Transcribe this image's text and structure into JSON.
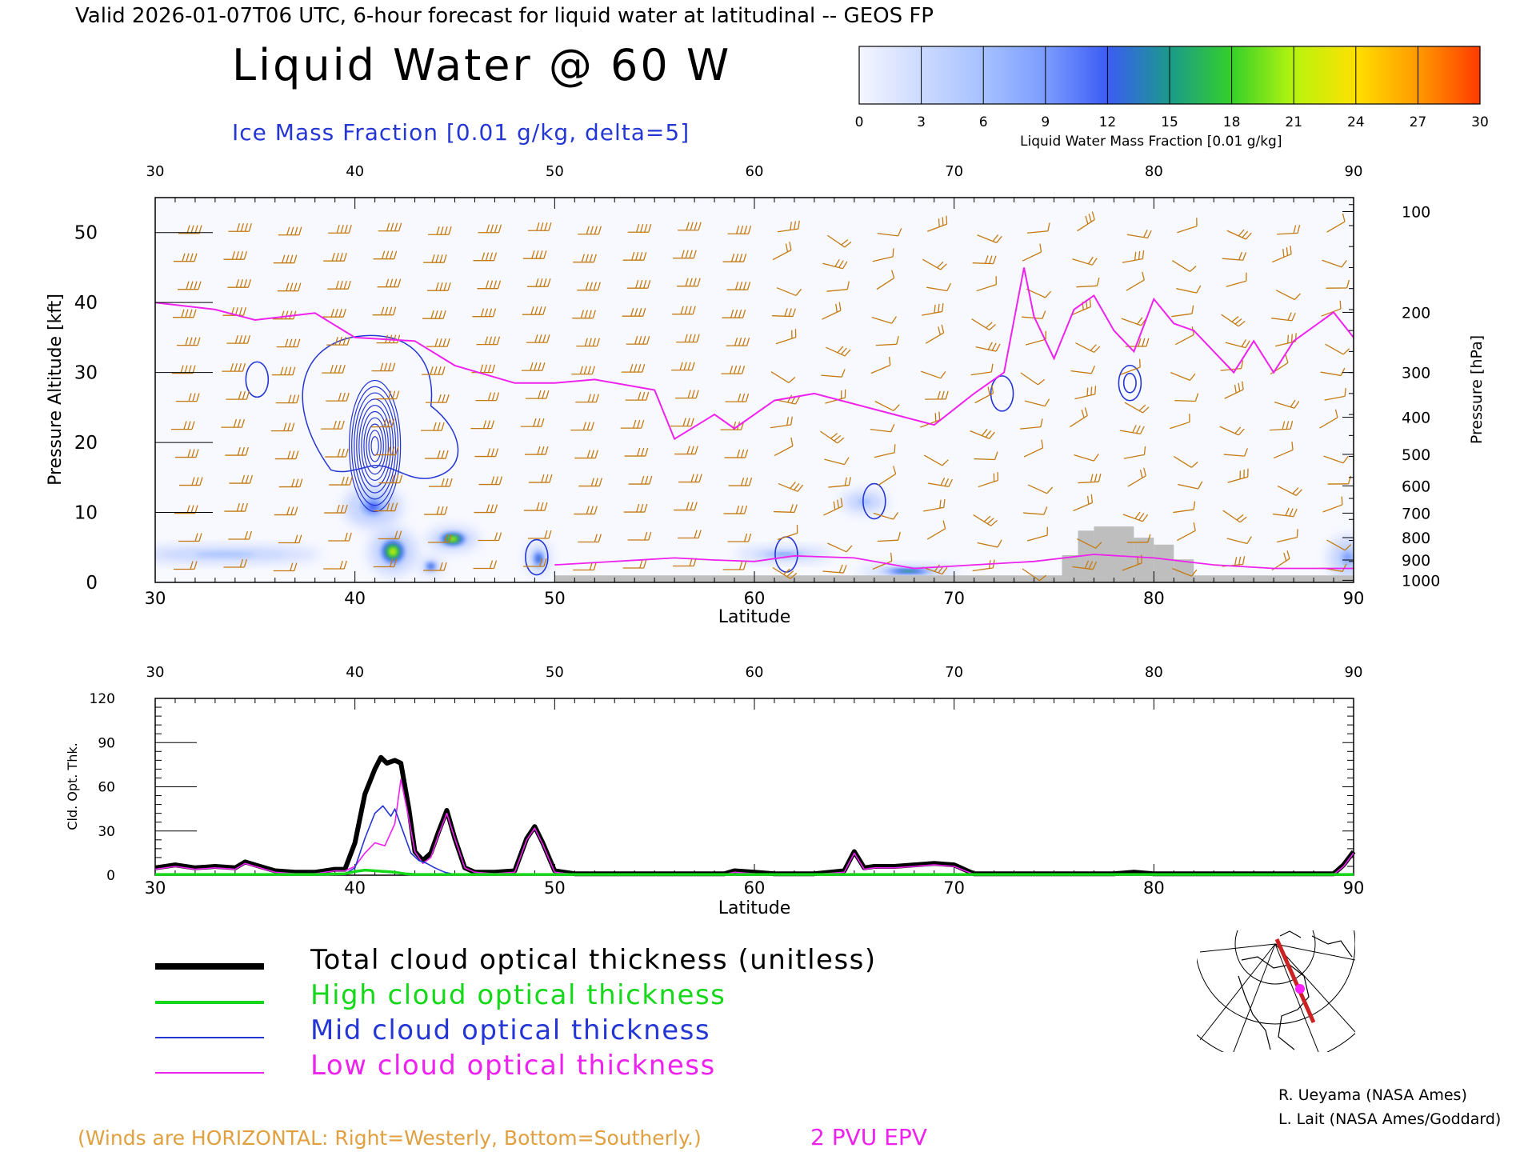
{
  "header": {
    "valid_line": "Valid 2026-01-07T06 UTC, 6-hour forecast for liquid water at latitudinal -- GEOS FP",
    "title": "Liquid Water @ 60 W",
    "ice_label": "Ice Mass Fraction [0.01 g/kg, delta=5]"
  },
  "colorbar": {
    "ticks": [
      "0",
      "3",
      "6",
      "9",
      "12",
      "15",
      "18",
      "21",
      "24",
      "27",
      "30"
    ],
    "label": "Liquid Water Mass Fraction [0.01 g/kg]",
    "colors": [
      "#f4f6ff",
      "#ccdaff",
      "#a6c1ff",
      "#7b9cff",
      "#3c5cf5",
      "#1a9a8a",
      "#35d02a",
      "#b6f40e",
      "#ffe000",
      "#ff9a00",
      "#ff3a00"
    ]
  },
  "colors": {
    "axis": "#000000",
    "wind_barb": "#c47a10",
    "ice_contour": "#2436d4",
    "epv_2pvu": "#ee22ee",
    "terrain": "#bebebe",
    "total_cot": "#000000",
    "high_cot": "#16d81a",
    "mid_cot": "#2436d4",
    "low_cot": "#ee22ee"
  },
  "legend": {
    "total": "Total cloud optical thickness (unitless)",
    "high": "High cloud optical thickness",
    "mid": "Mid cloud optical thickness",
    "low": "Low cloud optical thickness"
  },
  "footer": {
    "winds_note": "(Winds are HORIZONTAL: Right=Westerly, Bottom=Southerly.)",
    "pvu_label": "2 PVU EPV",
    "credit1": "R. Ueyama (NASA Ames)",
    "credit2": "L. Lait (NASA Ames/Goddard)"
  },
  "chart_data": [
    {
      "type": "heatmap",
      "title": "Liquid Water @ 60 W",
      "xlabel": "Latitude",
      "ylabel": "Pressure Altitude [kft]",
      "ylabel_right": "Pressure [hPa]",
      "xlim": [
        30,
        90
      ],
      "ylim": [
        0,
        55
      ],
      "x_ticks": [
        30,
        40,
        50,
        60,
        70,
        80,
        90
      ],
      "y_ticks": [
        0,
        10,
        20,
        30,
        40,
        50
      ],
      "pressure_ticks": [
        {
          "label": "100",
          "kft": 53
        },
        {
          "label": "200",
          "kft": 38.6
        },
        {
          "label": "300",
          "kft": 30
        },
        {
          "label": "400",
          "kft": 23.6
        },
        {
          "label": "500",
          "kft": 18.3
        },
        {
          "label": "600",
          "kft": 13.8
        },
        {
          "label": "700",
          "kft": 9.9
        },
        {
          "label": "800",
          "kft": 6.4
        },
        {
          "label": "900",
          "kft": 3.2
        },
        {
          "label": "1000",
          "kft": 0.3
        }
      ],
      "liquid_water_blobs": [
        {
          "lat": 40.9,
          "kft": 10.8,
          "rlat": 0.9,
          "rkft": 2.0,
          "value": 8
        },
        {
          "lat": 41.9,
          "kft": 4.4,
          "rlat": 0.75,
          "rkft": 2.2,
          "value": 22
        },
        {
          "lat": 44.9,
          "kft": 6.2,
          "rlat": 0.8,
          "rkft": 1.1,
          "value": 20
        },
        {
          "lat": 43.8,
          "kft": 2.3,
          "rlat": 0.35,
          "rkft": 0.8,
          "value": 13
        },
        {
          "lat": 49.2,
          "kft": 3.4,
          "rlat": 0.35,
          "rkft": 1.5,
          "value": 12
        },
        {
          "lat": 67.7,
          "kft": 1.6,
          "rlat": 1.6,
          "rkft": 0.5,
          "value": 14
        },
        {
          "lat": 61.5,
          "kft": 4.0,
          "rlat": 1.5,
          "rkft": 0.6,
          "value": 6
        },
        {
          "lat": 33.5,
          "kft": 4.0,
          "rlat": 3.0,
          "rkft": 0.7,
          "value": 3
        },
        {
          "lat": 65.5,
          "kft": 11.5,
          "rlat": 0.7,
          "rkft": 1.0,
          "value": 3
        },
        {
          "lat": 89.7,
          "kft": 3.5,
          "rlat": 0.6,
          "rkft": 2.0,
          "value": 6
        }
      ],
      "ice_contour_centers": [
        {
          "lat": 41.0,
          "kft": 19.5,
          "levels": 10
        },
        {
          "lat": 35.1,
          "kft": 29.0,
          "levels": 1
        },
        {
          "lat": 66.0,
          "kft": 11.6,
          "levels": 1
        },
        {
          "lat": 78.8,
          "kft": 28.5,
          "levels": 2
        },
        {
          "lat": 72.4,
          "kft": 27.0,
          "levels": 1
        },
        {
          "lat": 61.6,
          "kft": 4.0,
          "levels": 1
        },
        {
          "lat": 49.1,
          "kft": 3.6,
          "levels": 1
        }
      ],
      "epv_2pvu_line": {
        "lat": [
          30,
          33,
          35,
          38,
          40,
          43,
          45,
          48,
          50,
          52,
          55,
          56,
          58,
          59,
          61,
          63,
          65,
          67,
          69,
          71,
          72.5,
          73.5,
          74,
          75,
          76,
          77,
          78,
          79,
          80,
          81,
          82,
          84,
          85,
          86,
          87,
          89,
          90
        ],
        "kft": [
          40,
          39,
          37.5,
          38.5,
          35,
          34.5,
          31,
          28.5,
          28.5,
          29,
          27.5,
          20.5,
          24,
          22,
          26,
          27,
          25.5,
          24,
          22.5,
          27,
          30,
          45,
          38,
          32,
          39,
          41,
          36,
          33,
          40.5,
          37,
          36,
          30,
          34.5,
          30,
          34.5,
          38.6,
          35
        ]
      },
      "terrain": [
        {
          "lat_start": 50,
          "lat_end": 75.4,
          "kft": 1
        },
        {
          "lat_start": 75.4,
          "lat_end": 76.2,
          "kft": 3.9
        },
        {
          "lat_start": 76.2,
          "lat_end": 77.0,
          "kft": 7.4
        },
        {
          "lat_start": 77.0,
          "lat_end": 79.0,
          "kft": 8.0
        },
        {
          "lat_start": 79.0,
          "lat_end": 80.0,
          "kft": 6.4
        },
        {
          "lat_start": 80.0,
          "lat_end": 81.0,
          "kft": 5.4
        },
        {
          "lat_start": 81.0,
          "lat_end": 82.0,
          "kft": 3.3
        },
        {
          "lat_start": 82.0,
          "lat_end": 90,
          "kft": 1
        }
      ]
    },
    {
      "type": "line",
      "xlabel": "Latitude",
      "ylabel": "Cld. Opt. Thk.",
      "xlim": [
        30,
        90
      ],
      "ylim": [
        0,
        120
      ],
      "x_ticks": [
        30,
        40,
        50,
        60,
        70,
        80,
        90
      ],
      "y_ticks": [
        0,
        30,
        60,
        90,
        120
      ],
      "series": [
        {
          "name": "Total cloud optical thickness (unitless)",
          "key": "total",
          "x": [
            30,
            31,
            32,
            33,
            34,
            34.5,
            35,
            36,
            37,
            38,
            39,
            39.5,
            40,
            40.5,
            41,
            41.3,
            41.6,
            42,
            42.3,
            42.7,
            43,
            43.4,
            43.8,
            44.2,
            44.6,
            45,
            45.5,
            46,
            47,
            48,
            48.6,
            49,
            49.4,
            50,
            51,
            53,
            55,
            57,
            58.5,
            59,
            60,
            61,
            63,
            64.5,
            65,
            65.5,
            66,
            67,
            68,
            69,
            70,
            71,
            73,
            75,
            78,
            79,
            80,
            82,
            85,
            88,
            89,
            89.5,
            90
          ],
          "y": [
            5,
            7,
            5,
            6,
            5,
            9,
            7,
            3,
            2,
            2,
            4,
            4,
            22,
            55,
            72,
            80,
            76,
            78,
            76,
            45,
            16,
            10,
            15,
            30,
            44,
            25,
            5,
            2,
            2,
            3,
            25,
            33,
            22,
            3,
            1,
            1,
            1,
            1,
            1,
            3,
            2,
            1,
            1,
            3,
            16,
            5,
            6,
            6,
            7,
            8,
            7,
            1,
            1,
            1,
            1,
            2,
            1,
            1,
            1,
            1,
            1,
            7,
            16
          ]
        },
        {
          "name": "High cloud optical thickness",
          "key": "high",
          "x": [
            30,
            35,
            38,
            39.5,
            40,
            40.5,
            41,
            41.5,
            42,
            42.5,
            43,
            45,
            50,
            60,
            70,
            80,
            90
          ],
          "y": [
            0.5,
            0.5,
            0.5,
            1,
            2.5,
            3.5,
            3,
            2.5,
            2,
            1,
            0.5,
            0.5,
            0.5,
            0.5,
            0.5,
            0.5,
            0.5
          ]
        },
        {
          "name": "Mid cloud optical thickness",
          "key": "mid",
          "x": [
            30,
            38,
            39.5,
            40,
            40.5,
            41,
            41.4,
            41.8,
            42,
            42.4,
            42.8,
            43.2,
            43.6,
            44,
            44.5,
            45,
            50,
            60,
            70,
            80,
            90
          ],
          "y": [
            0.5,
            0.5,
            1,
            5,
            25,
            42,
            47,
            40,
            45,
            30,
            15,
            10,
            8,
            5,
            2,
            0.5,
            0.5,
            0.5,
            0.5,
            0.5,
            0.5
          ]
        },
        {
          "name": "Low cloud optical thickness",
          "key": "low",
          "x": [
            30,
            31,
            32,
            33,
            34,
            34.5,
            35,
            36,
            37,
            38,
            39,
            39.5,
            40,
            40.5,
            41,
            41.5,
            42,
            42.3,
            42.6,
            43,
            43.4,
            43.8,
            44.2,
            44.6,
            45,
            45.5,
            46,
            47,
            48,
            48.6,
            49,
            49.4,
            50,
            51,
            53,
            55,
            57,
            58.5,
            59,
            60,
            61,
            63,
            64.5,
            65,
            65.5,
            66,
            67,
            68,
            69,
            70,
            71,
            73,
            75,
            78,
            79,
            80,
            82,
            85,
            88,
            89,
            89.5,
            90
          ],
          "y": [
            4,
            6,
            4,
            5,
            4,
            8,
            6,
            2,
            1,
            1,
            3,
            3,
            6,
            15,
            22,
            20,
            35,
            65,
            45,
            16,
            8,
            12,
            28,
            42,
            25,
            5,
            2,
            1,
            2,
            24,
            32,
            21,
            2,
            0.5,
            0.5,
            0.5,
            0.5,
            0.5,
            2,
            1,
            0.5,
            0.5,
            2,
            15,
            4,
            5,
            5,
            6,
            7,
            6,
            0.5,
            0.5,
            0.5,
            0.5,
            1,
            0.5,
            0.5,
            0.5,
            0.5,
            0.5,
            6,
            15
          ]
        }
      ]
    }
  ]
}
